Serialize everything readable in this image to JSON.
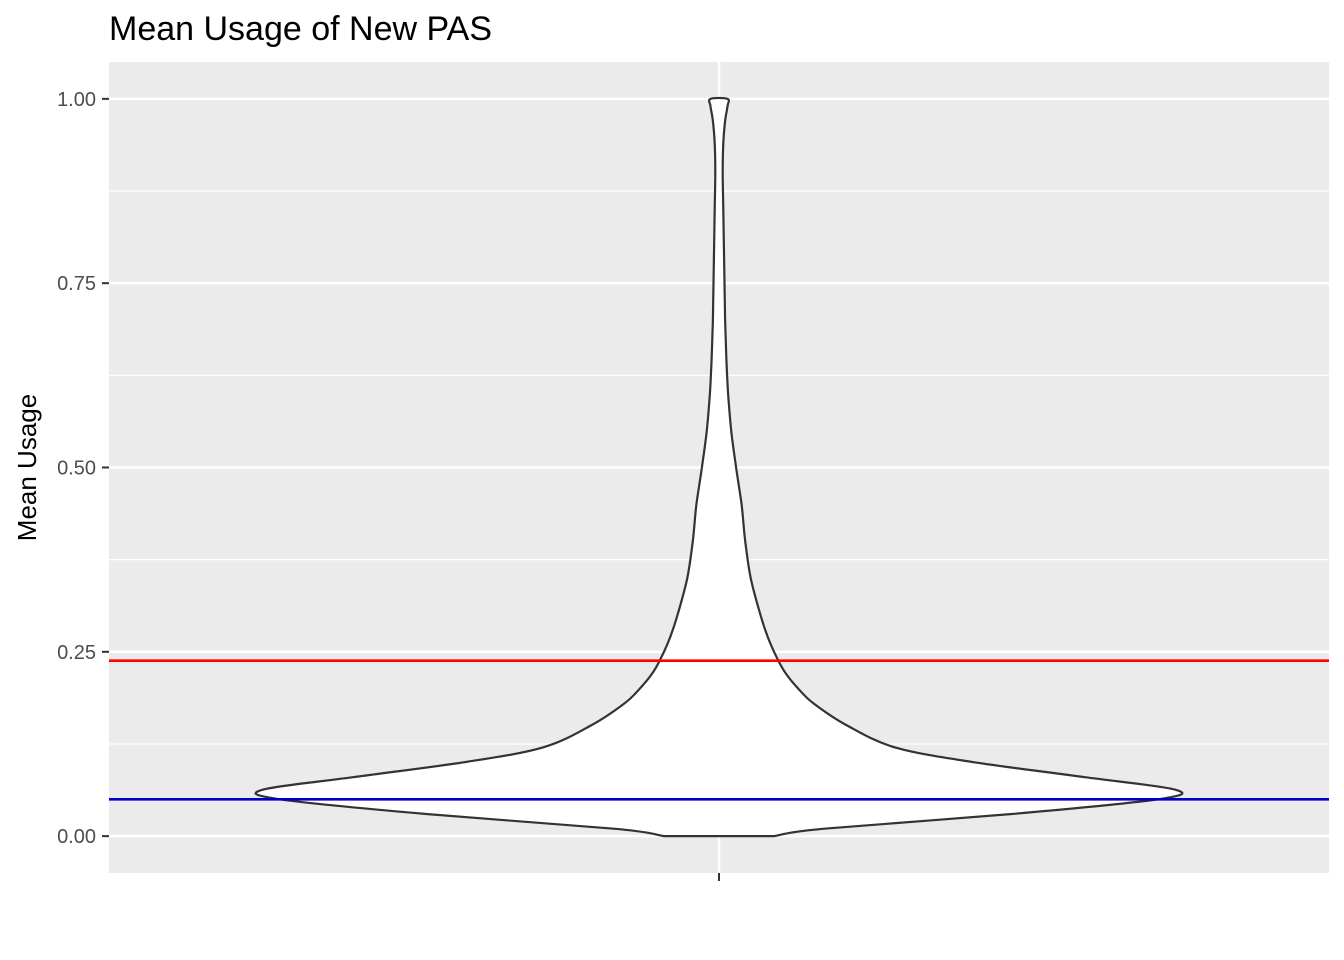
{
  "chart_data": {
    "type": "violin",
    "title": "Mean Usage of New PAS",
    "xlabel": "",
    "ylabel": "Mean Usage",
    "ylim": [
      -0.05,
      1.05
    ],
    "y_ticks": [
      0.0,
      0.25,
      0.5,
      0.75,
      1.0
    ],
    "y_tick_labels": [
      "0.00",
      "0.25",
      "0.50",
      "0.75",
      "1.00"
    ],
    "x_categories": [
      ""
    ],
    "grid": true,
    "background": "#ebebeb",
    "violin": {
      "fill": "#ffffff",
      "stroke": "#333333",
      "profile": [
        {
          "y": 0.0,
          "width": 0.09
        },
        {
          "y": 0.01,
          "width": 0.17
        },
        {
          "y": 0.03,
          "width": 0.48
        },
        {
          "y": 0.05,
          "width": 0.72
        },
        {
          "y": 0.063,
          "width": 0.748
        },
        {
          "y": 0.08,
          "width": 0.6
        },
        {
          "y": 0.1,
          "width": 0.42
        },
        {
          "y": 0.12,
          "width": 0.29
        },
        {
          "y": 0.15,
          "width": 0.21
        },
        {
          "y": 0.18,
          "width": 0.155
        },
        {
          "y": 0.2,
          "width": 0.13
        },
        {
          "y": 0.22,
          "width": 0.11
        },
        {
          "y": 0.24,
          "width": 0.096
        },
        {
          "y": 0.27,
          "width": 0.08
        },
        {
          "y": 0.3,
          "width": 0.068
        },
        {
          "y": 0.35,
          "width": 0.052
        },
        {
          "y": 0.4,
          "width": 0.043
        },
        {
          "y": 0.45,
          "width": 0.037
        },
        {
          "y": 0.5,
          "width": 0.028
        },
        {
          "y": 0.55,
          "width": 0.02
        },
        {
          "y": 0.6,
          "width": 0.015
        },
        {
          "y": 0.65,
          "width": 0.012
        },
        {
          "y": 0.7,
          "width": 0.01
        },
        {
          "y": 0.75,
          "width": 0.009
        },
        {
          "y": 0.8,
          "width": 0.008
        },
        {
          "y": 0.85,
          "width": 0.007
        },
        {
          "y": 0.9,
          "width": 0.006
        },
        {
          "y": 0.94,
          "width": 0.007
        },
        {
          "y": 0.97,
          "width": 0.01
        },
        {
          "y": 0.99,
          "width": 0.014
        },
        {
          "y": 1.0,
          "width": 0.014
        }
      ]
    },
    "hlines": [
      {
        "y": 0.238,
        "color": "#ff0000"
      },
      {
        "y": 0.05,
        "color": "#0000cd"
      }
    ]
  }
}
